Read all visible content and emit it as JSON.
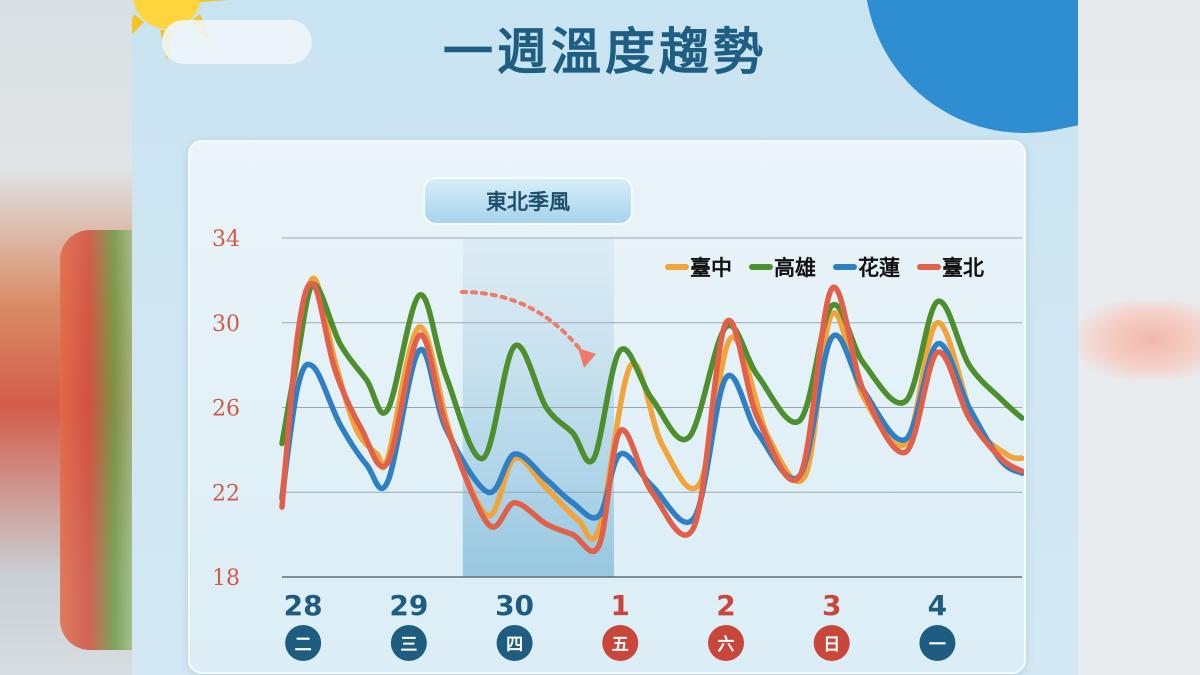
{
  "title": "一週溫度趨勢",
  "banner": "東北季風",
  "colors": {
    "taichung": "#f0a43a",
    "kaohsiung": "#4d8f2c",
    "hualien": "#2f7fc4",
    "taipei": "#e0604a",
    "day_circle_blue": "#1e5d80",
    "day_circle_red": "#c9473a",
    "title": "#1f5e83"
  },
  "chart_data": {
    "type": "line",
    "ylim": [
      18,
      34
    ],
    "yticks": [
      "34",
      "30",
      "26",
      "22",
      "18"
    ],
    "ytick_values": [
      34,
      30,
      26,
      22,
      18
    ],
    "grid": true,
    "legend_position": "top-right",
    "x_range": [
      0,
      7
    ],
    "days": [
      {
        "date": "28",
        "weekday": "二",
        "holiday": false
      },
      {
        "date": "29",
        "weekday": "三",
        "holiday": false
      },
      {
        "date": "30",
        "weekday": "四",
        "holiday": false
      },
      {
        "date": "1",
        "weekday": "五",
        "holiday": true
      },
      {
        "date": "2",
        "weekday": "六",
        "holiday": true
      },
      {
        "date": "3",
        "weekday": "日",
        "holiday": true
      },
      {
        "date": "4",
        "weekday": "一",
        "holiday": false
      }
    ],
    "highlight_x": [
      1.71,
      3.14
    ],
    "series": [
      {
        "name": "臺中",
        "color": "#f0a43a",
        "points": [
          [
            0,
            21.8
          ],
          [
            0.15,
            28.5
          ],
          [
            0.3,
            32.1
          ],
          [
            0.5,
            28.2
          ],
          [
            0.7,
            25.0
          ],
          [
            0.9,
            23.8
          ],
          [
            1.0,
            23.6
          ],
          [
            1.3,
            29.8
          ],
          [
            1.6,
            24.6
          ],
          [
            1.95,
            20.9
          ],
          [
            2.2,
            23.6
          ],
          [
            2.5,
            22.2
          ],
          [
            2.8,
            20.7
          ],
          [
            3.0,
            20.3
          ],
          [
            3.3,
            28.0
          ],
          [
            3.6,
            24.2
          ],
          [
            3.95,
            22.4
          ],
          [
            4.25,
            29.3
          ],
          [
            4.6,
            24.6
          ],
          [
            4.95,
            22.8
          ],
          [
            5.2,
            30.4
          ],
          [
            5.5,
            26.5
          ],
          [
            5.9,
            24.3
          ],
          [
            6.2,
            30.0
          ],
          [
            6.55,
            25.3
          ],
          [
            6.85,
            23.8
          ],
          [
            7.0,
            23.6
          ]
        ]
      },
      {
        "name": "高雄",
        "color": "#4d8f2c",
        "points": [
          [
            0,
            24.3
          ],
          [
            0.15,
            28.5
          ],
          [
            0.3,
            31.8
          ],
          [
            0.55,
            29.0
          ],
          [
            0.8,
            27.3
          ],
          [
            1.0,
            25.9
          ],
          [
            1.3,
            31.3
          ],
          [
            1.55,
            27.5
          ],
          [
            1.9,
            23.6
          ],
          [
            2.2,
            28.9
          ],
          [
            2.5,
            26.0
          ],
          [
            2.75,
            24.8
          ],
          [
            2.95,
            23.6
          ],
          [
            3.2,
            28.7
          ],
          [
            3.5,
            26.4
          ],
          [
            3.85,
            24.6
          ],
          [
            4.2,
            29.8
          ],
          [
            4.5,
            27.5
          ],
          [
            4.9,
            25.4
          ],
          [
            5.2,
            30.8
          ],
          [
            5.5,
            28.1
          ],
          [
            5.9,
            26.3
          ],
          [
            6.2,
            31.0
          ],
          [
            6.5,
            28.0
          ],
          [
            6.8,
            26.4
          ],
          [
            7.0,
            25.5
          ]
        ]
      },
      {
        "name": "花蓮",
        "color": "#2f7fc4",
        "points": [
          [
            0,
            21.7
          ],
          [
            0.15,
            27.0
          ],
          [
            0.3,
            27.9
          ],
          [
            0.55,
            25.2
          ],
          [
            0.8,
            23.3
          ],
          [
            1.0,
            22.5
          ],
          [
            1.3,
            28.7
          ],
          [
            1.55,
            25.0
          ],
          [
            1.95,
            22.0
          ],
          [
            2.2,
            23.8
          ],
          [
            2.5,
            22.6
          ],
          [
            2.75,
            21.5
          ],
          [
            3.0,
            20.9
          ],
          [
            3.2,
            23.8
          ],
          [
            3.5,
            22.3
          ],
          [
            3.9,
            20.8
          ],
          [
            4.2,
            27.4
          ],
          [
            4.5,
            24.8
          ],
          [
            4.9,
            22.8
          ],
          [
            5.2,
            29.3
          ],
          [
            5.5,
            26.8
          ],
          [
            5.9,
            24.5
          ],
          [
            6.2,
            29.0
          ],
          [
            6.5,
            26.0
          ],
          [
            6.8,
            23.5
          ],
          [
            7.0,
            22.9
          ]
        ]
      },
      {
        "name": "臺北",
        "color": "#e0604a",
        "points": [
          [
            0,
            21.3
          ],
          [
            0.15,
            29.5
          ],
          [
            0.3,
            31.8
          ],
          [
            0.5,
            27.8
          ],
          [
            0.75,
            25.0
          ],
          [
            1.0,
            23.4
          ],
          [
            1.3,
            29.4
          ],
          [
            1.55,
            25.2
          ],
          [
            1.95,
            20.5
          ],
          [
            2.2,
            21.5
          ],
          [
            2.5,
            20.5
          ],
          [
            2.75,
            20.0
          ],
          [
            3.0,
            19.5
          ],
          [
            3.2,
            24.9
          ],
          [
            3.5,
            22.0
          ],
          [
            3.9,
            20.4
          ],
          [
            4.2,
            30.0
          ],
          [
            4.5,
            25.5
          ],
          [
            4.9,
            22.8
          ],
          [
            5.2,
            31.6
          ],
          [
            5.5,
            26.8
          ],
          [
            5.9,
            23.9
          ],
          [
            6.2,
            28.6
          ],
          [
            6.5,
            25.5
          ],
          [
            6.8,
            23.6
          ],
          [
            7.0,
            23.0
          ]
        ]
      }
    ]
  }
}
